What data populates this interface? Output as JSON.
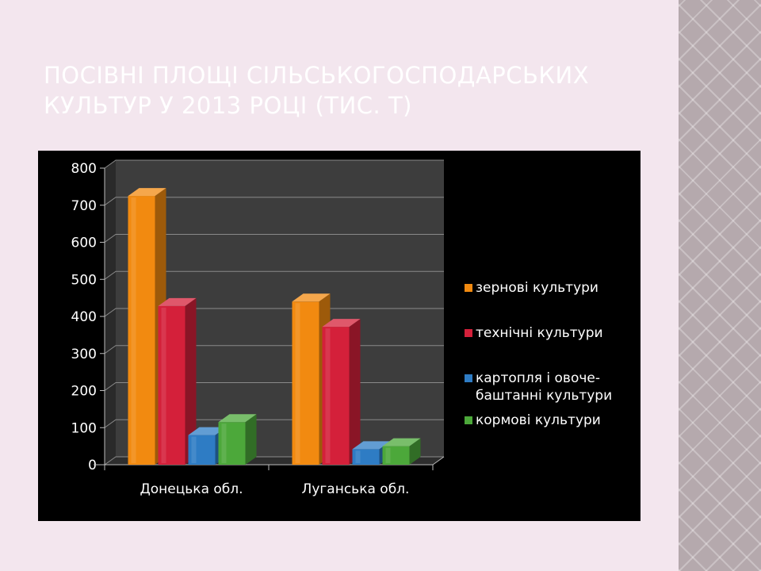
{
  "slide": {
    "title_line1": "Посівні площі сільськогосподарських",
    "title_line2": "культур у 2013 році (тис. т)"
  },
  "chart_data": {
    "type": "bar",
    "title": "",
    "xlabel": "",
    "ylabel": "",
    "categories": [
      "Донецька обл.",
      "Луганська обл."
    ],
    "ylim": [
      0,
      800
    ],
    "yticks": [
      0,
      100,
      200,
      300,
      400,
      500,
      600,
      700,
      800
    ],
    "grid": true,
    "legend_position": "right",
    "series": [
      {
        "name": "зернові культури",
        "values": [
          725,
          440
        ],
        "color": "#f28a10",
        "legend_lines": [
          "зернові культури"
        ]
      },
      {
        "name": "технічні культури",
        "values": [
          428,
          372
        ],
        "color": "#d4203a",
        "legend_lines": [
          "технічні культури"
        ]
      },
      {
        "name": "картопля і овоче-баштанні культури",
        "values": [
          80,
          42
        ],
        "color": "#2e7cc4",
        "legend_lines": [
          "картопля і овоче-",
          "баштанні культури"
        ]
      },
      {
        "name": "кормові культури",
        "values": [
          115,
          50
        ],
        "color": "#4ca83a",
        "legend_lines": [
          "кормові культури"
        ]
      }
    ]
  }
}
